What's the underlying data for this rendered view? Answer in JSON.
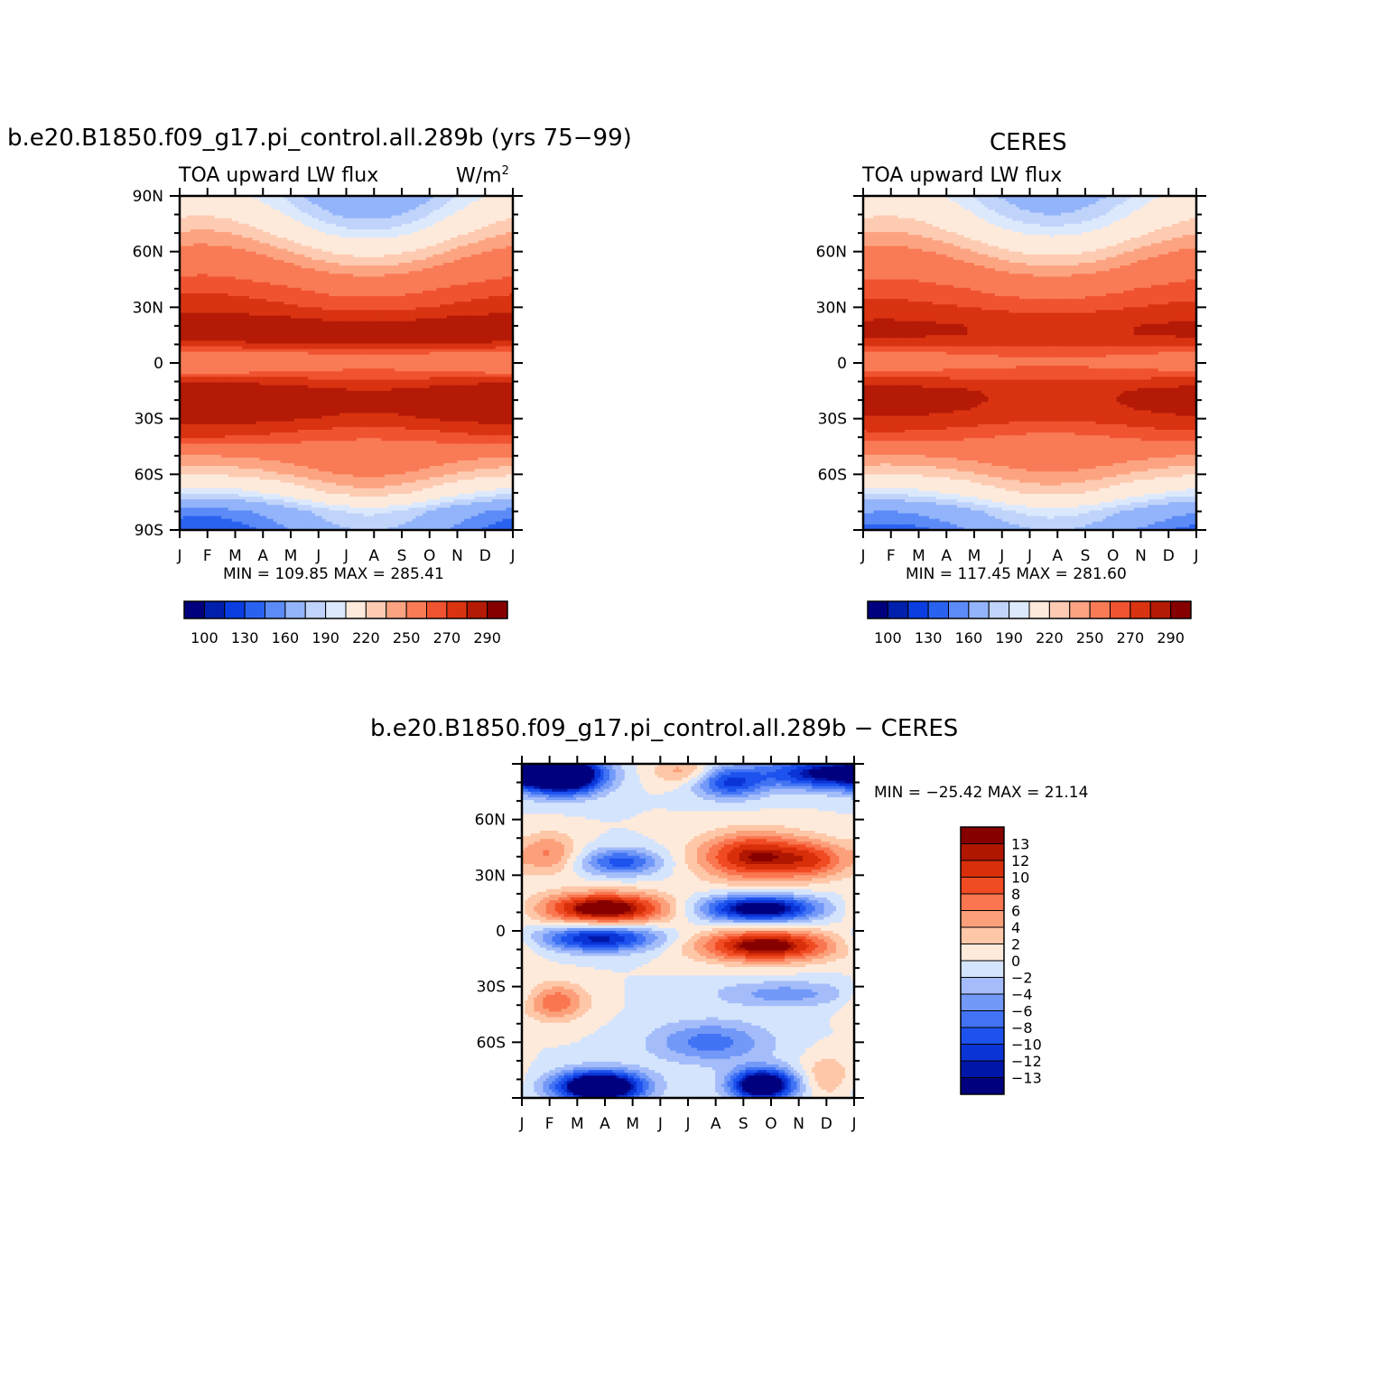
{
  "palette": {
    "abs": [
      "#00007f",
      "#001fad",
      "#0b3ee0",
      "#2a62f0",
      "#5c8bf7",
      "#93b4fa",
      "#c0d4fb",
      "#dce9fd",
      "#feeadb",
      "#fdcbb2",
      "#fca482",
      "#f97b56",
      "#f05330",
      "#d93311",
      "#b41a06",
      "#860000"
    ],
    "diff": [
      "#00007f",
      "#0016a8",
      "#0a34d6",
      "#1d52ee",
      "#4173f4",
      "#7399f8",
      "#a4bdfa",
      "#d4e4fd",
      "#feeadb",
      "#fdc7a8",
      "#fca07b",
      "#f97650",
      "#f04b23",
      "#d82f0a",
      "#b01600",
      "#860000"
    ]
  },
  "top_left": {
    "header": "b.e20.B1850.f09_g17.pi_control.all.289b (yrs 75−99)",
    "subtitle_left": "TOA upward LW flux",
    "subtitle_right": "W/m",
    "subtitle_right_sup": "2",
    "min_max": "MIN =  109.85 MAX =  285.41"
  },
  "top_right": {
    "header": "CERES",
    "subtitle_left": "TOA upward LW flux",
    "min_max": "MIN =  117.45 MAX =  281.60"
  },
  "bottom": {
    "header": "b.e20.B1850.f09_g17.pi_control.all.289b  −  CERES",
    "min_max": "MIN = −25.42 MAX =   21.14"
  },
  "chart_data": [
    {
      "type": "heatmap",
      "name": "model",
      "x_tick_labels": [
        "J",
        "F",
        "M",
        "A",
        "M",
        "J",
        "J",
        "A",
        "S",
        "O",
        "N",
        "D",
        "J"
      ],
      "y_tick_labels": [
        "90N",
        "60N",
        "30N",
        "0",
        "30S",
        "60S",
        "90S"
      ],
      "y_ticks_lat": [
        90,
        60,
        30,
        0,
        -30,
        -60,
        -90
      ],
      "xlim": [
        0,
        12
      ],
      "ylim": [
        -90,
        90
      ],
      "levels": [
        100,
        110,
        120,
        130,
        140,
        150,
        160,
        170,
        180,
        190,
        200,
        210,
        220,
        230,
        240,
        250,
        260,
        270,
        280,
        290
      ],
      "colorbar_labels": [
        "100",
        "130",
        "160",
        "190",
        "220",
        "250",
        "270",
        "290"
      ],
      "lat_profile": {
        "lat": [
          90,
          80,
          70,
          60,
          50,
          40,
          30,
          25,
          20,
          15,
          10,
          5,
          0,
          -5,
          -10,
          -15,
          -20,
          -25,
          -30,
          -40,
          -50,
          -60,
          -70,
          -80,
          -90
        ],
        "annual_mean": [
          178,
          190,
          205,
          222,
          237,
          252,
          262,
          270,
          276,
          277,
          268,
          248,
          242,
          250,
          266,
          277,
          279,
          276,
          272,
          256,
          236,
          220,
          196,
          160,
          148
        ],
        "seasonal_amp": [
          -40,
          -38,
          -34,
          -26,
          -20,
          -12,
          -8,
          -6,
          -3,
          -3,
          2,
          4,
          5,
          3,
          -4,
          -10,
          -10,
          -8,
          -6,
          -8,
          12,
          18,
          30,
          34,
          35
        ]
      }
    },
    {
      "type": "heatmap",
      "name": "obs",
      "x_tick_labels": [
        "J",
        "F",
        "M",
        "A",
        "M",
        "J",
        "J",
        "A",
        "S",
        "O",
        "N",
        "D",
        "J"
      ],
      "y_tick_labels": [
        "60N",
        "30N",
        "0",
        "30S",
        "60S"
      ],
      "y_ticks_lat": [
        60,
        30,
        0,
        -30,
        -60
      ],
      "xlim": [
        0,
        12
      ],
      "ylim": [
        -90,
        90
      ],
      "levels": [
        100,
        110,
        120,
        130,
        140,
        150,
        160,
        170,
        180,
        190,
        200,
        210,
        220,
        230,
        240,
        250,
        260,
        270,
        280,
        290
      ],
      "colorbar_labels": [
        "100",
        "130",
        "160",
        "190",
        "220",
        "250",
        "270",
        "290"
      ],
      "lat_profile": {
        "lat": [
          90,
          80,
          70,
          60,
          50,
          40,
          30,
          25,
          20,
          15,
          10,
          5,
          0,
          -5,
          -10,
          -15,
          -20,
          -25,
          -30,
          -40,
          -50,
          -60,
          -70,
          -80,
          -90
        ],
        "annual_mean": [
          182,
          192,
          206,
          222,
          236,
          250,
          260,
          266,
          270,
          270,
          262,
          250,
          246,
          252,
          264,
          271,
          272,
          270,
          266,
          252,
          234,
          218,
          196,
          165,
          150
        ],
        "seasonal_amp": [
          -36,
          -34,
          -30,
          -24,
          -18,
          -12,
          -6,
          -6,
          -4,
          -4,
          0,
          3,
          3,
          2,
          -3,
          -8,
          -8,
          -7,
          -6,
          -8,
          10,
          16,
          26,
          30,
          32
        ]
      }
    },
    {
      "type": "heatmap",
      "name": "difference",
      "x_tick_labels": [
        "J",
        "F",
        "M",
        "A",
        "M",
        "J",
        "J",
        "A",
        "S",
        "O",
        "N",
        "D",
        "J"
      ],
      "y_tick_labels": [
        "60N",
        "30N",
        "0",
        "30S",
        "60S"
      ],
      "y_ticks_lat": [
        60,
        30,
        0,
        -30,
        -60
      ],
      "xlim": [
        0,
        12
      ],
      "ylim": [
        -90,
        90
      ],
      "levels": [
        -13,
        -12,
        -10,
        -8,
        -6,
        -4,
        -2,
        0,
        2,
        4,
        6,
        8,
        10,
        12,
        13
      ],
      "colorbar_labels": [
        "13",
        "12",
        "10",
        "8",
        "6",
        "4",
        "2",
        "0",
        "−2",
        "−4",
        "−6",
        "−8",
        "−10",
        "−12",
        "−13"
      ],
      "anomalies": [
        {
          "month": 1.5,
          "lat": 84,
          "amp": -22,
          "sx": 1.0,
          "sy": 7
        },
        {
          "month": 11.0,
          "lat": 85,
          "amp": -14,
          "sx": 1.6,
          "sy": 6
        },
        {
          "month": 7.5,
          "lat": 80,
          "amp": -10,
          "sx": 0.9,
          "sy": 6
        },
        {
          "month": 5.8,
          "lat": 86,
          "amp": 5,
          "sx": 0.8,
          "sy": 5
        },
        {
          "month": 1.0,
          "lat": 42,
          "amp": 6,
          "sx": 0.7,
          "sy": 8
        },
        {
          "month": 3.6,
          "lat": 37,
          "amp": -9,
          "sx": 1.0,
          "sy": 5
        },
        {
          "month": 8.4,
          "lat": 40,
          "amp": 13,
          "sx": 1.4,
          "sy": 9
        },
        {
          "month": 10.6,
          "lat": 38,
          "amp": 7,
          "sx": 0.9,
          "sy": 7
        },
        {
          "month": 3.0,
          "lat": 12,
          "amp": 16,
          "sx": 1.6,
          "sy": 6
        },
        {
          "month": 8.6,
          "lat": 12,
          "amp": -16,
          "sx": 1.5,
          "sy": 5
        },
        {
          "month": 2.8,
          "lat": -4,
          "amp": -13,
          "sx": 1.5,
          "sy": 5
        },
        {
          "month": 8.8,
          "lat": -8,
          "amp": 15,
          "sx": 1.7,
          "sy": 6
        },
        {
          "month": 1.2,
          "lat": -38,
          "amp": 8,
          "sx": 0.8,
          "sy": 7
        },
        {
          "month": 9.5,
          "lat": -34,
          "amp": -5,
          "sx": 1.8,
          "sy": 5
        },
        {
          "month": 6.8,
          "lat": -60,
          "amp": -7,
          "sx": 1.5,
          "sy": 8
        },
        {
          "month": 2.8,
          "lat": -84,
          "amp": -22,
          "sx": 1.1,
          "sy": 6
        },
        {
          "month": 8.7,
          "lat": -83,
          "amp": -20,
          "sx": 0.8,
          "sy": 6
        },
        {
          "month": 11.0,
          "lat": -78,
          "amp": 4,
          "sx": 0.6,
          "sy": 8
        }
      ]
    }
  ]
}
